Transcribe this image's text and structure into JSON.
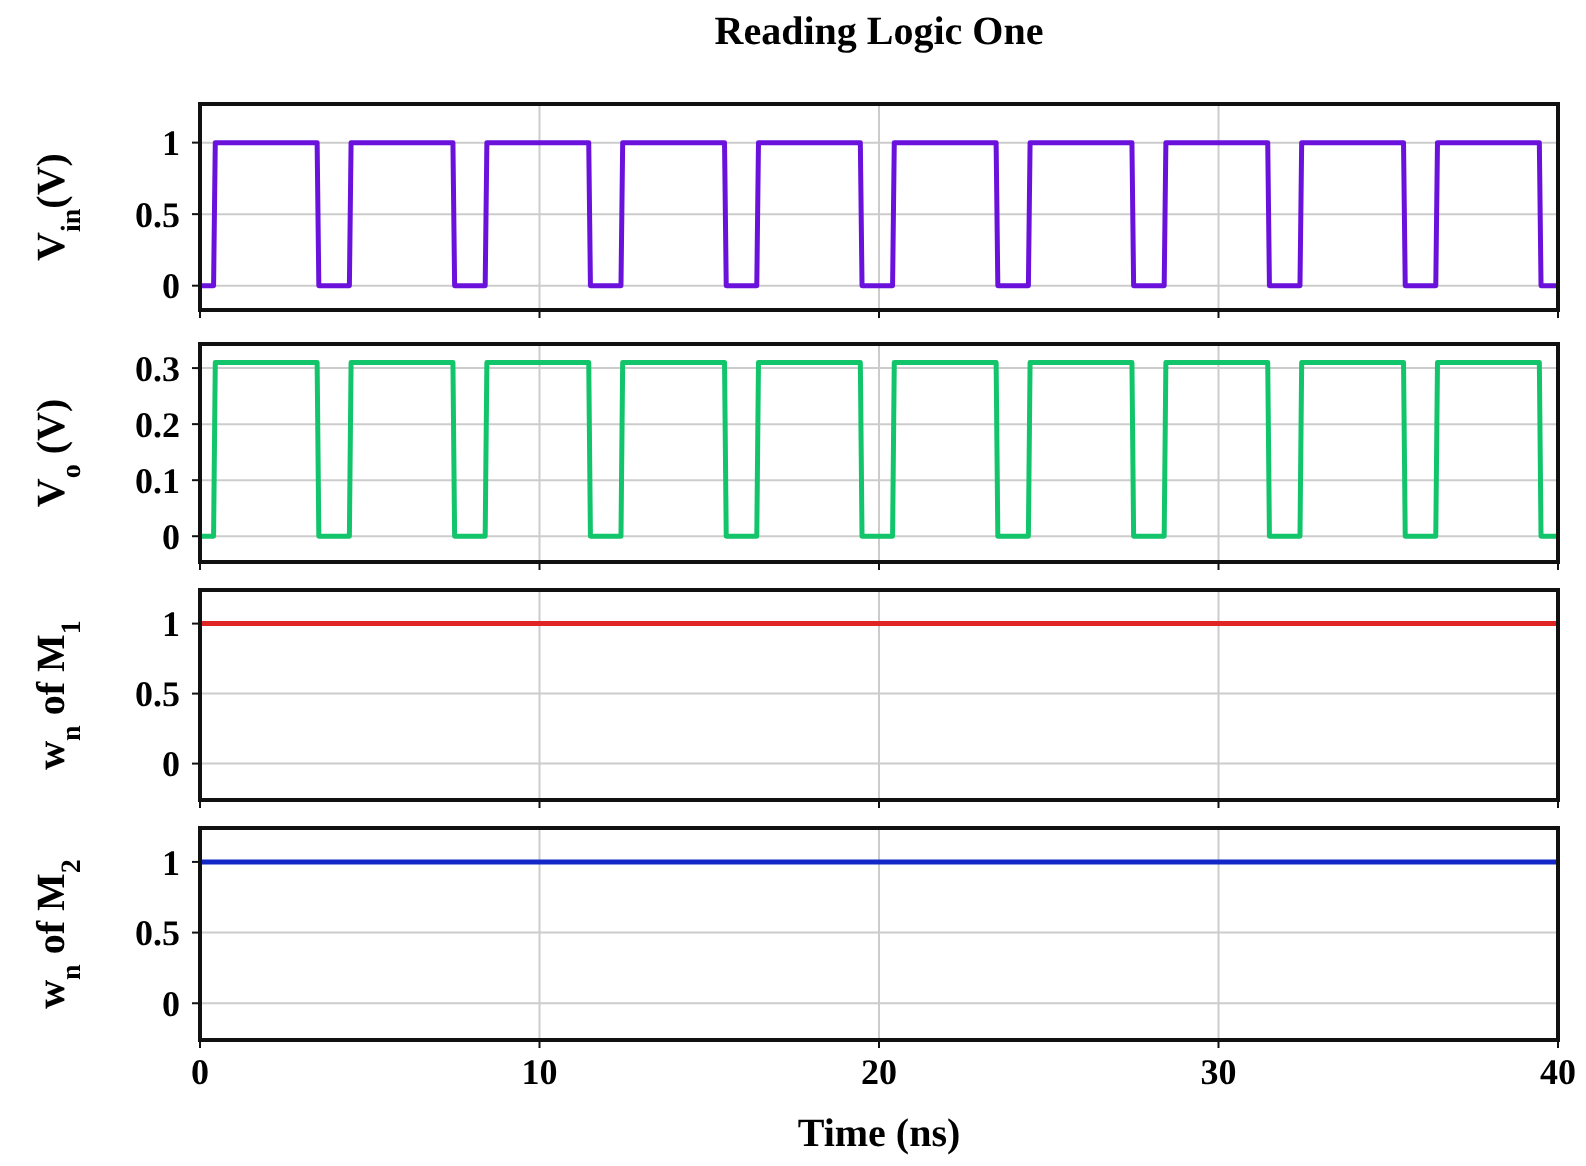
{
  "chart_data": [
    {
      "type": "line",
      "title": "Reading Logic One",
      "ylabel": "V$_{in}$(V)",
      "xlim": [
        0,
        40
      ],
      "xticks": [
        0,
        10,
        20,
        30,
        40
      ],
      "ylim": [
        -0.17,
        1.27
      ],
      "yticks": [
        0,
        0.5,
        1
      ],
      "grid": true,
      "tick_labels": "y",
      "x": [
        0,
        0.4,
        0.45,
        3.45,
        3.5,
        4.4,
        4.45,
        7.45,
        7.5,
        8.4,
        8.45,
        11.45,
        11.5,
        12.4,
        12.45,
        15.45,
        15.5,
        16.4,
        16.45,
        19.45,
        19.5,
        20.4,
        20.45,
        23.45,
        23.5,
        24.4,
        24.45,
        27.45,
        27.5,
        28.4,
        28.45,
        31.45,
        31.5,
        32.4,
        32.45,
        35.45,
        35.5,
        36.4,
        36.45,
        39.45,
        39.5,
        40
      ],
      "series": [
        {
          "color": "#6a12dc",
          "values": [
            0,
            0,
            1,
            1,
            0,
            0,
            1,
            1,
            0,
            0,
            1,
            1,
            0,
            0,
            1,
            1,
            0,
            0,
            1,
            1,
            0,
            0,
            1,
            1,
            0,
            0,
            1,
            1,
            0,
            0,
            1,
            1,
            0,
            0,
            1,
            1,
            0,
            0,
            1,
            1,
            0,
            0
          ]
        }
      ]
    },
    {
      "type": "line",
      "ylabel": "V$_{o}$ (V)",
      "xlim": [
        0,
        40
      ],
      "xticks": [
        0,
        10,
        20,
        30,
        40
      ],
      "ylim": [
        -0.046,
        0.343
      ],
      "yticks": [
        0,
        0.1,
        0.2,
        0.3
      ],
      "grid": true,
      "tick_labels": "y",
      "x": [
        0,
        0.4,
        0.45,
        3.45,
        3.5,
        4.4,
        4.45,
        7.45,
        7.5,
        8.4,
        8.45,
        11.45,
        11.5,
        12.4,
        12.45,
        15.45,
        15.5,
        16.4,
        16.45,
        19.45,
        19.5,
        20.4,
        20.45,
        23.45,
        23.5,
        24.4,
        24.45,
        27.45,
        27.5,
        28.4,
        28.45,
        31.45,
        31.5,
        32.4,
        32.45,
        35.45,
        35.5,
        36.4,
        36.45,
        39.45,
        39.5,
        40
      ],
      "series": [
        {
          "color": "#12c46a",
          "values": [
            0,
            0,
            0.31,
            0.31,
            0,
            0,
            0.31,
            0.31,
            0,
            0,
            0.31,
            0.31,
            0,
            0,
            0.31,
            0.31,
            0,
            0,
            0.31,
            0.31,
            0,
            0,
            0.31,
            0.31,
            0,
            0,
            0.31,
            0.31,
            0,
            0,
            0.31,
            0.31,
            0,
            0,
            0.31,
            0.31,
            0,
            0,
            0.31,
            0.31,
            0,
            0
          ]
        }
      ]
    },
    {
      "type": "line",
      "ylabel": "w$_{n}$ of M$_{1}$",
      "xlim": [
        0,
        40
      ],
      "xticks": [
        0,
        10,
        20,
        30,
        40
      ],
      "ylim": [
        -0.26,
        1.24
      ],
      "yticks": [
        0,
        0.5,
        1
      ],
      "grid": true,
      "tick_labels": "y",
      "x": [
        0,
        40
      ],
      "series": [
        {
          "color": "#e02424",
          "values": [
            1,
            1
          ]
        }
      ]
    },
    {
      "type": "line",
      "ylabel": "w$_{n}$ of M$_{2}$",
      "xlabel": "Time (ns)",
      "xlim": [
        0,
        40
      ],
      "xticks": [
        0,
        10,
        20,
        30,
        40
      ],
      "ylim": [
        -0.26,
        1.24
      ],
      "yticks": [
        0,
        0.5,
        1
      ],
      "grid": true,
      "x": [
        0,
        40
      ],
      "series": [
        {
          "color": "#1428c8",
          "values": [
            1,
            1
          ]
        }
      ]
    }
  ]
}
